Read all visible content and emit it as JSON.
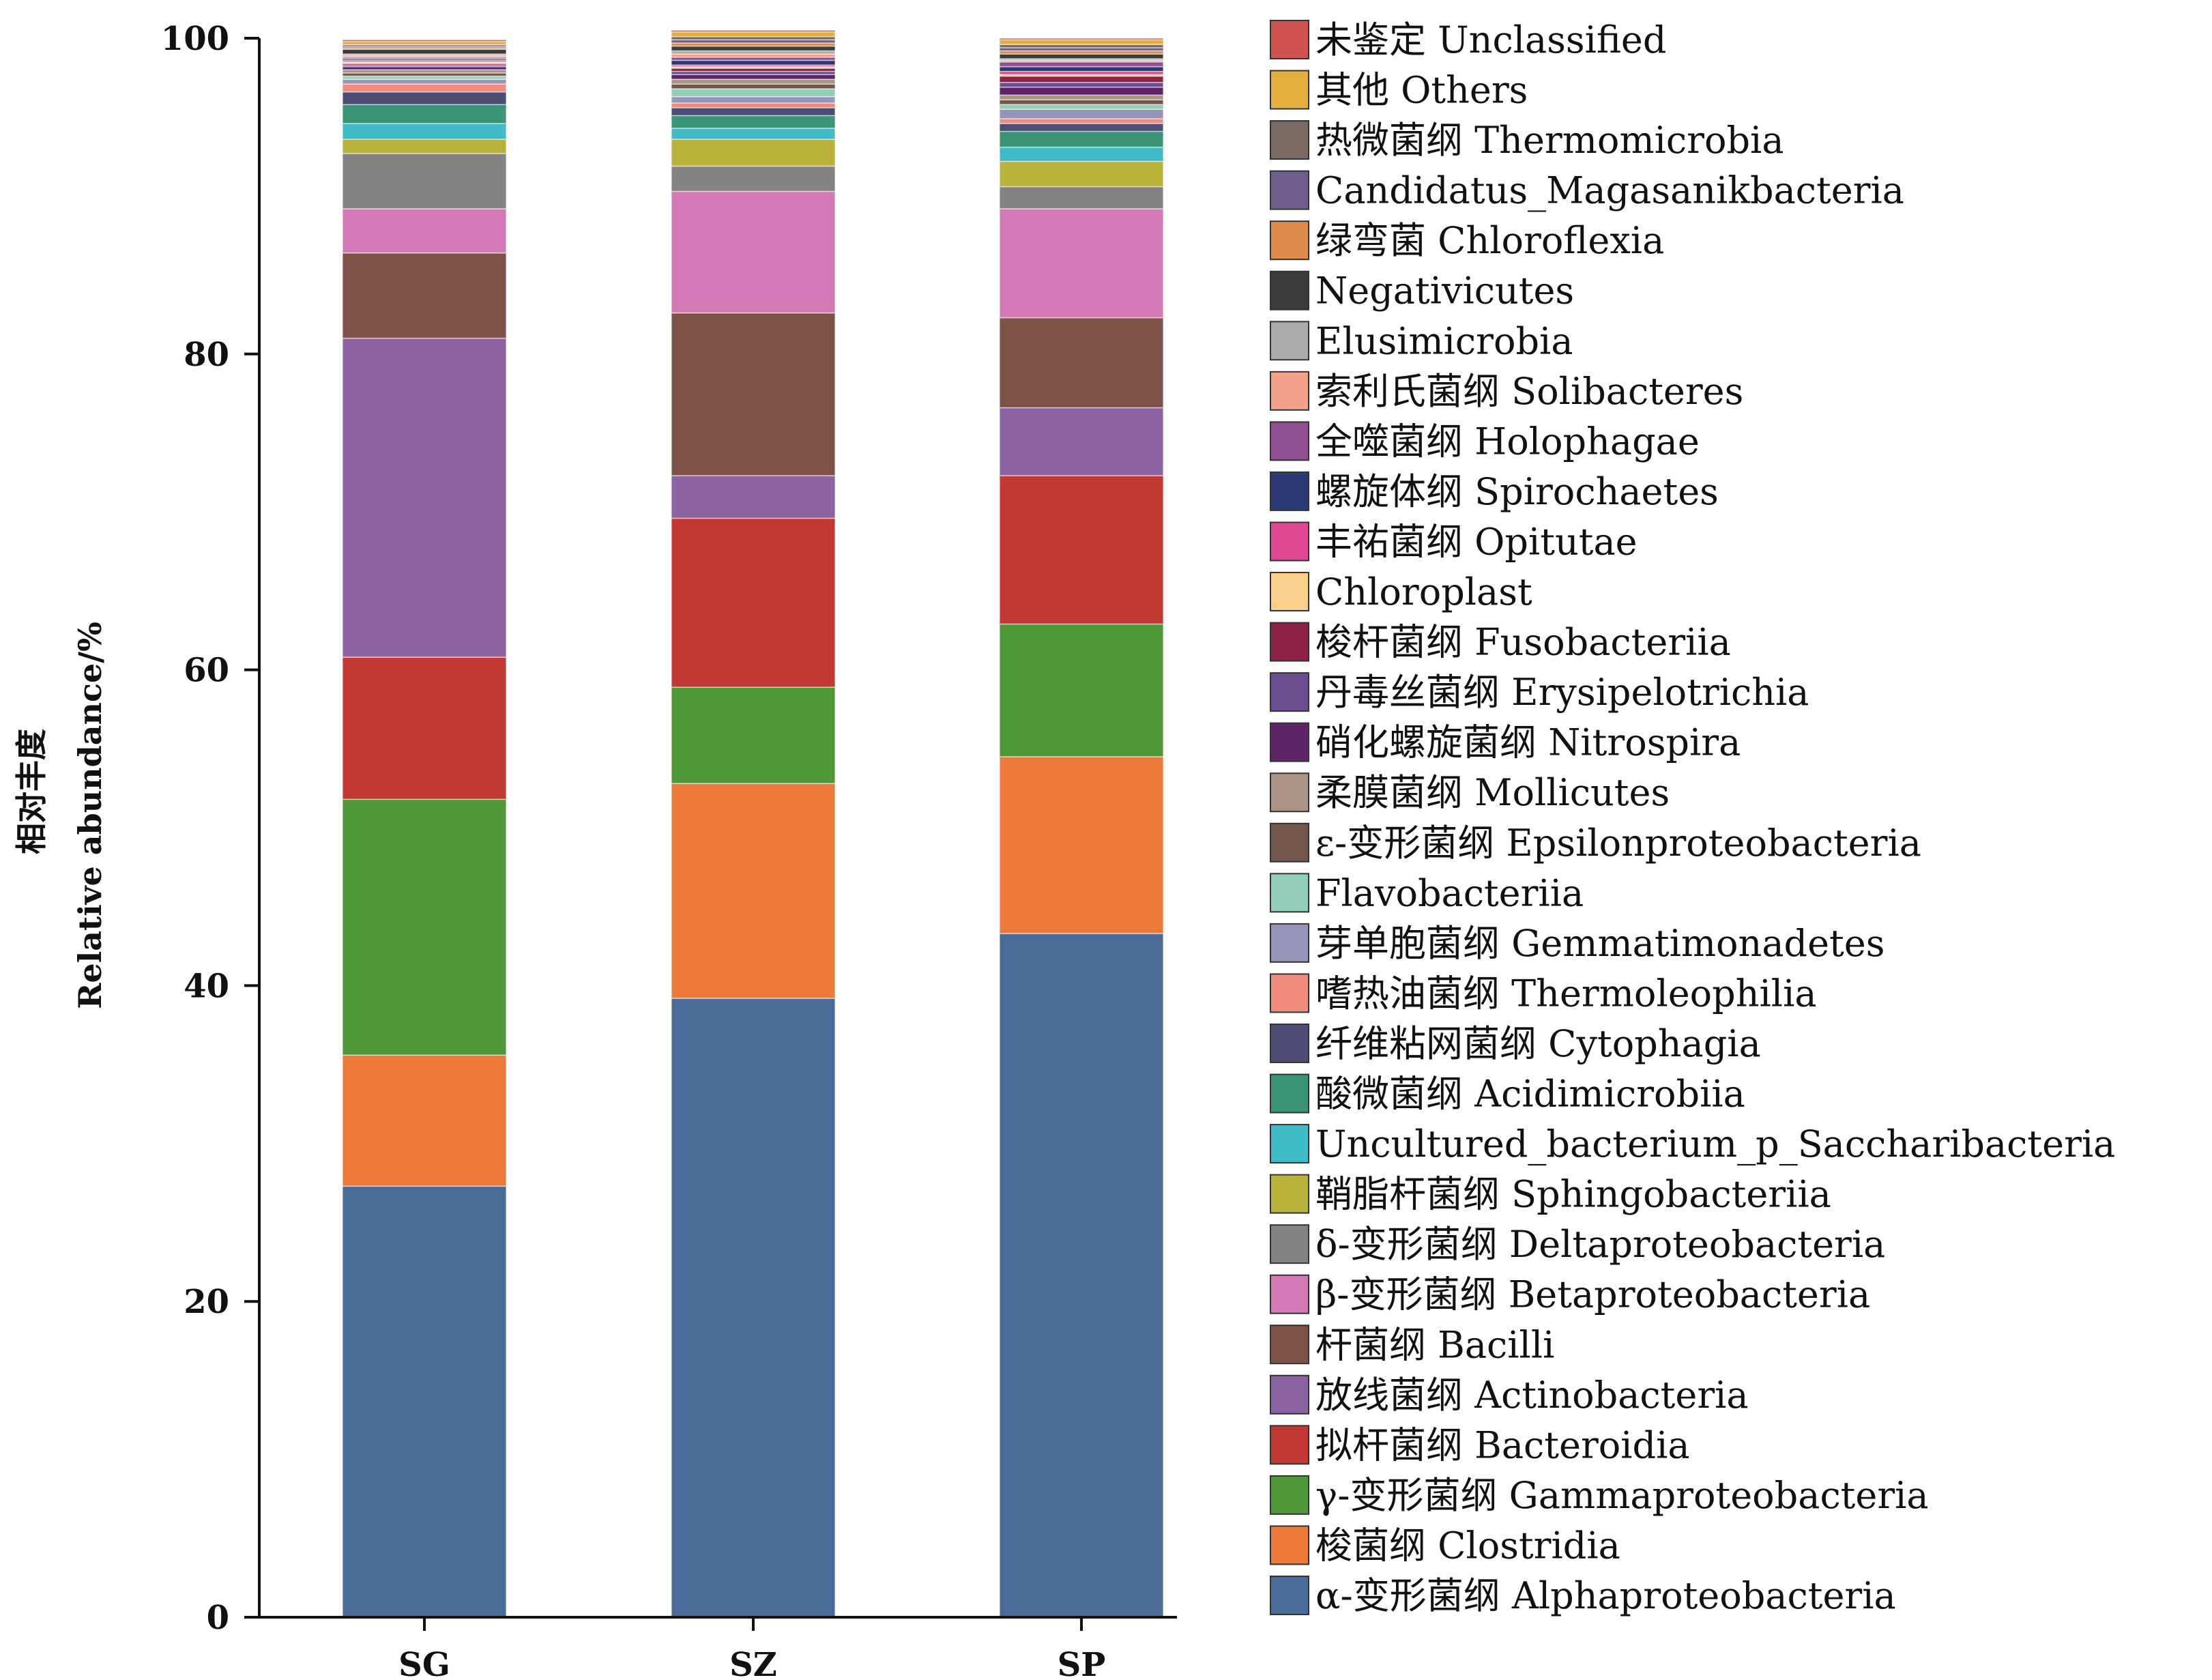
{
  "chart_data": {
    "type": "bar",
    "stacked": true,
    "title": "",
    "xlabel": "",
    "ylabel_cn": "相对丰度",
    "ylabel_en": "Relative abundance/%",
    "ylim": [
      0,
      100
    ],
    "yticks": [
      0,
      20,
      40,
      60,
      80,
      100
    ],
    "categories": [
      "SG",
      "SZ",
      "SP"
    ],
    "legend_position": "right",
    "series": [
      {
        "name": "α-变形菌纲 Alphaproteobacteria",
        "color": "#4a6b97",
        "values": [
          27.3,
          39.2,
          43.3
        ]
      },
      {
        "name": "梭菌纲 Clostridia",
        "color": "#ec7a3a",
        "values": [
          8.3,
          13.6,
          11.2
        ]
      },
      {
        "name": "γ-变形菌纲 Gammaproteobacteria",
        "color": "#4f9838",
        "values": [
          16.2,
          6.1,
          8.4
        ]
      },
      {
        "name": "拟杆菌纲 Bacteroidia",
        "color": "#c23934",
        "values": [
          9.0,
          10.7,
          9.4
        ]
      },
      {
        "name": "放线菌纲 Actinobacteria",
        "color": "#8b63a3",
        "values": [
          20.2,
          2.7,
          4.3
        ]
      },
      {
        "name": "杆菌纲 Bacilli",
        "color": "#7f5248",
        "values": [
          5.4,
          10.3,
          5.7
        ]
      },
      {
        "name": "β-变形菌纲 Betaproteobacteria",
        "color": "#d379b6",
        "values": [
          2.8,
          7.7,
          6.9
        ]
      },
      {
        "name": "δ-变形菌纲 Deltaproteobacteria",
        "color": "#848282",
        "values": [
          3.5,
          1.6,
          1.4
        ]
      },
      {
        "name": "鞘脂杆菌纲 Sphingobacteriia",
        "color": "#b9b23d",
        "values": [
          0.9,
          1.7,
          1.6
        ]
      },
      {
        "name": "Uncultured_bacterium_p_Saccharibacteria",
        "color": "#3fbcc7",
        "values": [
          1.0,
          0.7,
          0.9
        ]
      },
      {
        "name": "酸微菌纲 Acidimicrobiia",
        "color": "#3b9477",
        "values": [
          1.2,
          0.8,
          1.0
        ]
      },
      {
        "name": "纤维粘网菌纲 Cytophagia",
        "color": "#4d4d75",
        "values": [
          0.8,
          0.5,
          0.5
        ]
      },
      {
        "name": "嗜热油菌纲 Thermoleophilia",
        "color": "#f08c7e",
        "values": [
          0.5,
          0.3,
          0.3
        ]
      },
      {
        "name": "芽单胞菌纲 Gemmatimonadetes",
        "color": "#9495b7",
        "values": [
          0.3,
          0.4,
          0.6
        ]
      },
      {
        "name": "Flavobacteriia",
        "color": "#93cfb8",
        "values": [
          0.2,
          0.5,
          0.3
        ]
      },
      {
        "name": "ε-变形菌纲 Epsilonproteobacteria",
        "color": "#73564a",
        "values": [
          0.2,
          0.3,
          0.3
        ]
      },
      {
        "name": "柔膜菌纲 Mollicutes",
        "color": "#ab9385",
        "values": [
          0.2,
          0.3,
          0.3
        ]
      },
      {
        "name": "硝化螺旋菌纲 Nitrospira",
        "color": "#5e2468",
        "values": [
          0.2,
          0.3,
          0.5
        ]
      },
      {
        "name": "丹毒丝菌纲 Erysipelotrichia",
        "color": "#6a4d8e",
        "values": [
          0.1,
          0.2,
          0.3
        ]
      },
      {
        "name": "梭杆菌纲 Fusobacteriia",
        "color": "#8c2244",
        "values": [
          0.1,
          0.2,
          0.4
        ]
      },
      {
        "name": "Chloroplast",
        "color": "#fbd08c",
        "values": [
          0.1,
          0.1,
          0.1
        ]
      },
      {
        "name": "丰祐菌纲 Opitutae",
        "color": "#e04792",
        "values": [
          0.1,
          0.1,
          0.2
        ]
      },
      {
        "name": "螺旋体纲 Spirochaetes",
        "color": "#2c3a73",
        "values": [
          0.1,
          0.3,
          0.3
        ]
      },
      {
        "name": "全噬菌纲 Holophagae",
        "color": "#8f4f91",
        "values": [
          0.1,
          0.2,
          0.3
        ]
      },
      {
        "name": "索利氏菌纲 Solibacteres",
        "color": "#f4a18b",
        "values": [
          0.1,
          0.2,
          0.1
        ]
      },
      {
        "name": "Elusimicrobia",
        "color": "#ababab",
        "values": [
          0.1,
          0.2,
          0.1
        ]
      },
      {
        "name": "Negativicutes",
        "color": "#3a3d3c",
        "values": [
          0.3,
          0.3,
          0.3
        ]
      },
      {
        "name": "绿弯菌 Chloroflexia",
        "color": "#dd8a4a",
        "values": [
          0.1,
          0.2,
          0.2
        ]
      },
      {
        "name": "Candidatus_Magasanikbacteria",
        "color": "#6f5f8d",
        "values": [
          0.1,
          0.2,
          0.2
        ]
      },
      {
        "name": "热微菌纲 Thermomicrobia",
        "color": "#7a6a62",
        "values": [
          0.1,
          0.2,
          0.2
        ]
      },
      {
        "name": "其他 Others",
        "color": "#e5ae3f",
        "values": [
          0.2,
          0.3,
          0.3
        ]
      },
      {
        "name": "未鉴定 Unclassified",
        "color": "#cf5451",
        "values": [
          0.1,
          0.1,
          0.1
        ]
      }
    ]
  }
}
